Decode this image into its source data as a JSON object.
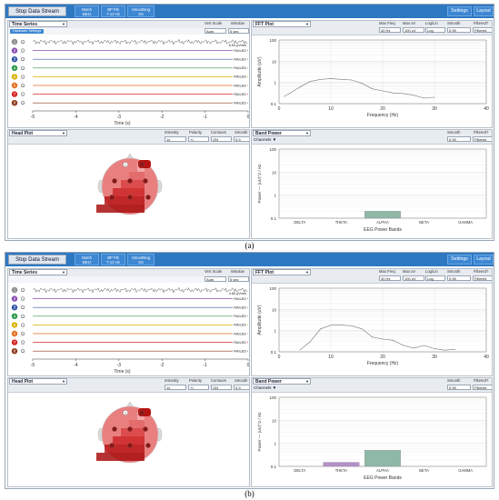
{
  "toolbar": {
    "stop_label": "Stop Data Stream",
    "notch_l1": "Notch",
    "notch_l2": "50Hz",
    "bp_l1": "BP Filt",
    "bp_l2": "7-13 Hz",
    "smooth_l1": "Smoothing",
    "smooth_l2": "On",
    "settings_label": "Settings",
    "layout_label": "Layout"
  },
  "time_series": {
    "title": "Time Series",
    "vert_scale_label": "Vert Scale",
    "vert_scale_value": "Auto",
    "window_label": "Window",
    "window_value": "5 sec",
    "hw_settings": "Hardware Settings",
    "uvrms_a": "8.53 μVrms",
    "uvrms_b": "4.65 μVrms",
    "railed": "RAILED",
    "ohm": "Ω",
    "x_ticks": [
      "-5",
      "-4",
      "-3",
      "-2",
      "-1",
      "0"
    ],
    "x_label": "Time (s)",
    "channels": [
      "1",
      "2",
      "3",
      "4",
      "5",
      "6",
      "7",
      "8"
    ]
  },
  "fft": {
    "title": "FFT Plot",
    "maxfreq_label": "Max Freq",
    "maxfreq_value": "40 Hz",
    "maxuv_label": "Max uV",
    "maxuv_value": "100 uV",
    "loglin_label": "Log/Lin",
    "loglin_value": "Log",
    "smooth_label": "Smooth",
    "smooth_value": "0.95",
    "filtered_label": "Filtered?",
    "filtered_value": "Filtered",
    "y_label": "Amplitude (uV)",
    "x_label": "Frequency (Hz)",
    "y_ticks": [
      "100",
      "10",
      "1",
      "0.1"
    ],
    "x_ticks": [
      "0",
      "10",
      "20",
      "30",
      "40"
    ]
  },
  "head": {
    "title": "Head Plot",
    "intensity_label": "Intensity",
    "intensity_value": "1x",
    "polarity_label": "Polarity",
    "polarity_value": "+/-",
    "contours_label": "Contours",
    "contours_value": "ON",
    "smooth_label": "Smooth",
    "smooth_value": "0.9"
  },
  "band": {
    "title": "Band Power",
    "smooth_label": "Smooth",
    "smooth_value": "0.95",
    "filtered_label": "Filtered?",
    "filtered_value": "Filtered",
    "channels_label": "Channels ▼",
    "y_label": "Power — (uV)^2 / Hz",
    "x_label": "EEG Power Bands",
    "bands": [
      "DELTA",
      "THETA",
      "ALPHA",
      "BETA",
      "GAMMA"
    ],
    "y_ticks": [
      "100",
      "10",
      "1",
      "0.1"
    ]
  },
  "captions": {
    "a": "(a)",
    "b": "(b)"
  },
  "colors": {
    "topbar": "#2e78c2",
    "channels": [
      "#8c8c8c",
      "#8a4fb0",
      "#3557a8",
      "#2f9a4a",
      "#d9b300",
      "#e36b1b",
      "#d62828",
      "#8b3a1a"
    ],
    "band_theta": "#b48fc8",
    "band_alpha": "#8fb8a6"
  },
  "chart_data": [
    {
      "type": "line",
      "title": "FFT Plot (a)",
      "xlabel": "Frequency (Hz)",
      "ylabel": "Amplitude (uV)",
      "xlim": [
        0,
        40
      ],
      "ylim": [
        0.1,
        100
      ],
      "yscale": "log",
      "x": [
        1,
        2,
        4,
        6,
        8,
        10,
        12,
        14,
        16,
        18,
        20,
        22,
        24,
        26,
        28,
        30
      ],
      "y": [
        0.22,
        0.3,
        0.6,
        1.1,
        1.4,
        1.5,
        1.4,
        1.3,
        0.9,
        0.5,
        0.4,
        0.32,
        0.3,
        0.25,
        0.18,
        0.2
      ]
    },
    {
      "type": "line",
      "title": "FFT Plot (b)",
      "xlabel": "Frequency (Hz)",
      "ylabel": "Amplitude (uV)",
      "xlim": [
        0,
        40
      ],
      "ylim": [
        0.1,
        100
      ],
      "yscale": "log",
      "x": [
        4,
        6,
        8,
        10,
        12,
        14,
        16,
        18,
        20,
        22,
        24,
        26,
        28,
        30,
        32,
        34
      ],
      "y": [
        0.12,
        0.3,
        1.2,
        1.8,
        1.8,
        1.7,
        1.2,
        0.5,
        0.4,
        0.35,
        0.2,
        0.15,
        0.2,
        0.14,
        0.12,
        0.13
      ]
    },
    {
      "type": "bar",
      "title": "Band Power (a)",
      "xlabel": "EEG Power Bands",
      "ylabel": "Power — (uV)^2 / Hz",
      "categories": [
        "DELTA",
        "THETA",
        "ALPHA",
        "BETA",
        "GAMMA"
      ],
      "values": [
        0,
        0,
        0.2,
        0,
        0
      ],
      "ylim": [
        0.1,
        100
      ],
      "yscale": "log"
    },
    {
      "type": "bar",
      "title": "Band Power (b)",
      "xlabel": "EEG Power Bands",
      "ylabel": "Power — (uV)^2 / Hz",
      "categories": [
        "DELTA",
        "THETA",
        "ALPHA",
        "BETA",
        "GAMMA"
      ],
      "values": [
        0,
        0.15,
        0.5,
        0,
        0
      ],
      "ylim": [
        0.1,
        100
      ],
      "yscale": "log"
    }
  ]
}
